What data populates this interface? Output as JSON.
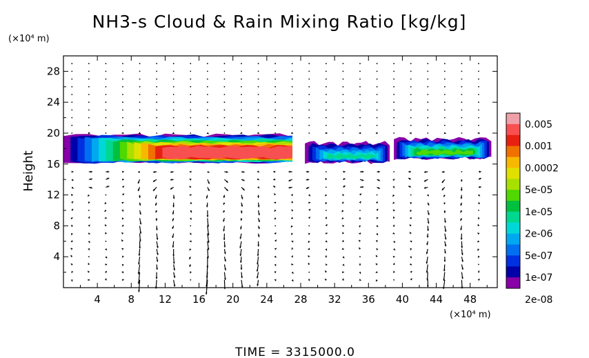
{
  "title": "NH3-s Cloud & Rain Mixing Ratio [kg/kg]",
  "y_unit": "(×10⁴ m)",
  "x_unit": "(×10⁴ m)",
  "footer": "TIME  =  3315000.0",
  "chart_data": {
    "type": "heatmap",
    "title": "NH3-s Cloud & Rain Mixing Ratio [kg/kg]",
    "xlabel": "",
    "ylabel": "Height",
    "x_unit": "(×10⁴ m)",
    "y_unit": "(×10⁴ m)",
    "xlim": [
      0,
      51.2
    ],
    "ylim": [
      0,
      30
    ],
    "x_ticks": [
      4,
      8,
      12,
      16,
      20,
      24,
      28,
      32,
      36,
      40,
      44,
      48
    ],
    "y_ticks": [
      4,
      8,
      12,
      16,
      20,
      24,
      28
    ],
    "colorbar": {
      "labels": [
        "0.005",
        "0.001",
        "0.0002",
        "5e-05",
        "1e-05",
        "2e-06",
        "5e-07",
        "1e-07",
        "2e-08"
      ],
      "colors": [
        "#f0a0a8",
        "#f85050",
        "#e82010",
        "#f07000",
        "#f8b800",
        "#e0e000",
        "#a8e000",
        "#50d800",
        "#00c040",
        "#00d890",
        "#00d8d8",
        "#00a8f0",
        "#0070f0",
        "#0030e0",
        "#0000a8",
        "#8800a8"
      ]
    },
    "cloud_layer": [
      {
        "x_range": [
          0,
          27
        ],
        "base": 16,
        "top": 20,
        "max_level": "0.001",
        "peak_x": 19.5
      },
      {
        "x_range": [
          28.5,
          38.5
        ],
        "base": 16,
        "top": 19,
        "max_level": "1e-05",
        "peak_x": 34
      },
      {
        "x_range": [
          39,
          50.5
        ],
        "base": 16.5,
        "top": 19.5,
        "max_level": "5e-05",
        "peak_x": 45
      }
    ],
    "vector_field": "wind vectors, strongest downward columns near x = 17, 20, 44, 46 (×10⁴ m)",
    "footer": "TIME  =  3315000.0"
  }
}
